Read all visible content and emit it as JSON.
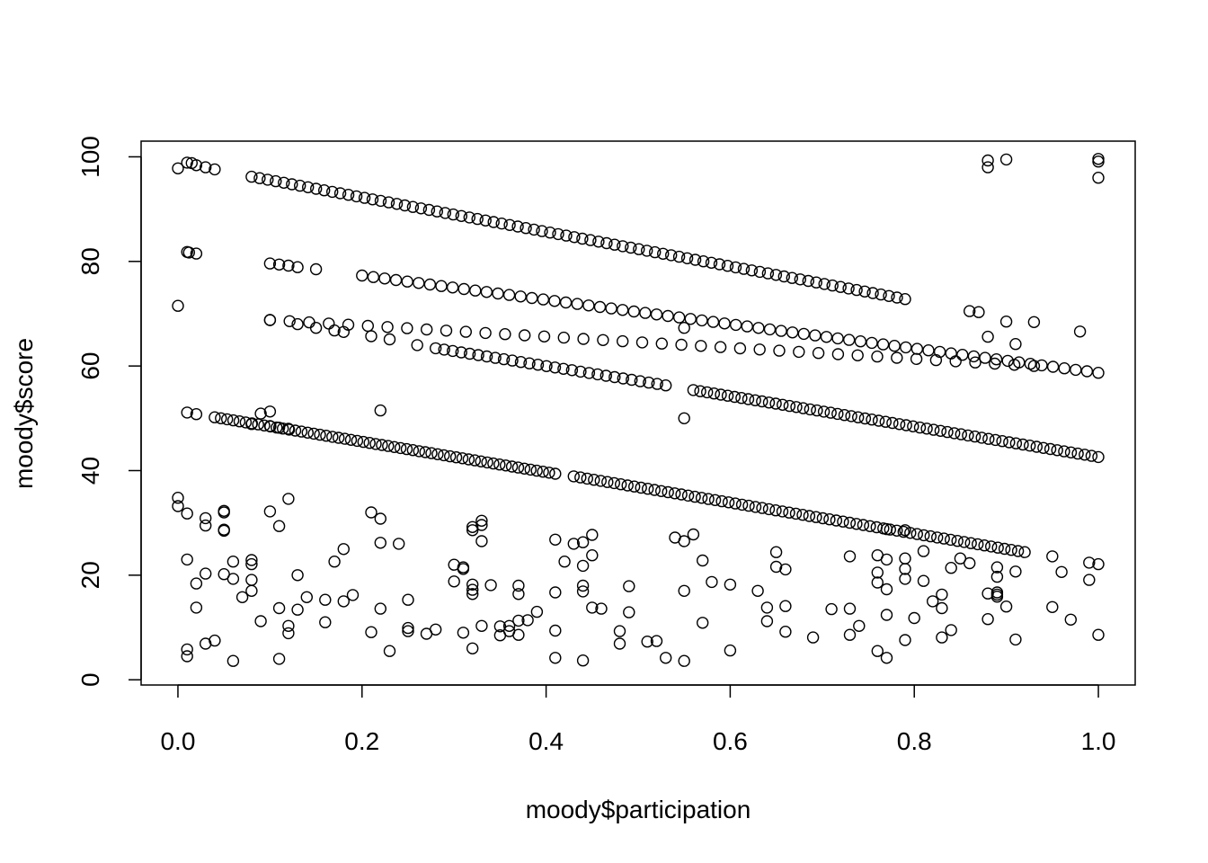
{
  "chart_data": {
    "type": "scatter",
    "title": "",
    "xlabel": "moody$participation",
    "ylabel": "moody$score",
    "xlim": [
      -0.04,
      1.04
    ],
    "ylim": [
      -1,
      103
    ],
    "grid": false,
    "x_ticks": [
      0.0,
      0.2,
      0.4,
      0.6,
      0.8,
      1.0
    ],
    "x_tick_labels": [
      "0.0",
      "0.2",
      "0.4",
      "0.6",
      "0.8",
      "1.0"
    ],
    "y_ticks": [
      0,
      20,
      40,
      60,
      80,
      100
    ],
    "y_tick_labels": [
      "0",
      "20",
      "40",
      "60",
      "80",
      "100"
    ],
    "bands": [
      {
        "x0": 0.08,
        "y0": 96.2,
        "x1": 0.79,
        "y1": 72.8,
        "n": 82
      },
      {
        "x0": 0.2,
        "y0": 77.3,
        "x1": 1.0,
        "y1": 58.7,
        "n": 66
      },
      {
        "x0": 0.1,
        "y0": 68.8,
        "x1": 0.93,
        "y1": 60.0,
        "n": 40
      },
      {
        "x0": 0.28,
        "y0": 63.4,
        "x1": 0.53,
        "y1": 56.3,
        "n": 28
      },
      {
        "x0": 0.56,
        "y0": 55.4,
        "x1": 1.0,
        "y1": 42.6,
        "n": 60
      },
      {
        "x0": 0.04,
        "y0": 50.2,
        "x1": 0.41,
        "y1": 39.4,
        "n": 56
      },
      {
        "x0": 0.43,
        "y0": 38.9,
        "x1": 0.92,
        "y1": 24.4,
        "n": 68
      }
    ],
    "points": [
      [
        0.0,
        97.8
      ],
      [
        0.01,
        98.9
      ],
      [
        0.015,
        98.8
      ],
      [
        0.02,
        98.4
      ],
      [
        0.03,
        98.0
      ],
      [
        0.04,
        97.6
      ],
      [
        0.01,
        81.8
      ],
      [
        0.012,
        81.7
      ],
      [
        0.02,
        81.5
      ],
      [
        0.1,
        79.6
      ],
      [
        0.11,
        79.4
      ],
      [
        0.12,
        79.2
      ],
      [
        0.13,
        78.9
      ],
      [
        0.15,
        78.5
      ],
      [
        0.0,
        71.5
      ],
      [
        0.1,
        68.8
      ],
      [
        0.13,
        68.0
      ],
      [
        0.15,
        67.3
      ],
      [
        0.17,
        66.8
      ],
      [
        0.18,
        66.5
      ],
      [
        0.21,
        65.7
      ],
      [
        0.23,
        65.1
      ],
      [
        0.26,
        64.0
      ],
      [
        0.01,
        51.1
      ],
      [
        0.02,
        50.8
      ],
      [
        0.09,
        50.9
      ],
      [
        0.1,
        51.3
      ],
      [
        0.22,
        51.5
      ],
      [
        0.08,
        48.9
      ],
      [
        0.1,
        48.5
      ],
      [
        0.11,
        48.2
      ],
      [
        0.12,
        48.0
      ],
      [
        0.55,
        67.3
      ],
      [
        0.55,
        50.0
      ],
      [
        0.86,
        70.5
      ],
      [
        0.87,
        70.3
      ],
      [
        0.9,
        68.5
      ],
      [
        0.93,
        68.4
      ],
      [
        0.88,
        65.6
      ],
      [
        0.91,
        64.2
      ],
      [
        0.98,
        66.6
      ],
      [
        0.88,
        99.3
      ],
      [
        0.88,
        98.0
      ],
      [
        0.9,
        99.5
      ],
      [
        1.0,
        99.6
      ],
      [
        1.0,
        99.1
      ],
      [
        1.0,
        96.0
      ],
      [
        0.0,
        34.8
      ],
      [
        0.0,
        33.2
      ],
      [
        0.01,
        31.8
      ],
      [
        0.03,
        30.9
      ],
      [
        0.03,
        29.5
      ],
      [
        0.05,
        32.3
      ],
      [
        0.05,
        32.0
      ],
      [
        0.05,
        28.7
      ],
      [
        0.05,
        28.5
      ],
      [
        0.1,
        32.2
      ],
      [
        0.11,
        29.4
      ],
      [
        0.12,
        34.6
      ],
      [
        0.21,
        32.0
      ],
      [
        0.22,
        30.8
      ],
      [
        0.22,
        26.2
      ],
      [
        0.24,
        26.0
      ],
      [
        0.32,
        28.6
      ],
      [
        0.32,
        29.2
      ],
      [
        0.33,
        30.4
      ],
      [
        0.33,
        29.6
      ],
      [
        0.33,
        26.5
      ],
      [
        0.41,
        26.8
      ],
      [
        0.43,
        26.0
      ],
      [
        0.44,
        26.3
      ],
      [
        0.45,
        27.7
      ],
      [
        0.54,
        27.2
      ],
      [
        0.55,
        26.5
      ],
      [
        0.56,
        27.8
      ],
      [
        0.77,
        28.8
      ],
      [
        0.79,
        28.6
      ],
      [
        0.01,
        23.0
      ],
      [
        0.02,
        18.4
      ],
      [
        0.02,
        13.8
      ],
      [
        0.03,
        20.3
      ],
      [
        0.05,
        20.2
      ],
      [
        0.06,
        22.6
      ],
      [
        0.06,
        19.3
      ],
      [
        0.07,
        15.8
      ],
      [
        0.08,
        22.9
      ],
      [
        0.08,
        22.1
      ],
      [
        0.08,
        19.1
      ],
      [
        0.08,
        17.0
      ],
      [
        0.09,
        11.2
      ],
      [
        0.11,
        13.7
      ],
      [
        0.12,
        10.3
      ],
      [
        0.12,
        8.9
      ],
      [
        0.13,
        13.4
      ],
      [
        0.13,
        20.0
      ],
      [
        0.14,
        15.8
      ],
      [
        0.16,
        15.3
      ],
      [
        0.16,
        11.0
      ],
      [
        0.17,
        22.6
      ],
      [
        0.18,
        25.0
      ],
      [
        0.18,
        15.0
      ],
      [
        0.19,
        16.2
      ],
      [
        0.21,
        9.1
      ],
      [
        0.22,
        13.6
      ],
      [
        0.25,
        15.3
      ],
      [
        0.25,
        9.9
      ],
      [
        0.25,
        9.3
      ],
      [
        0.27,
        8.8
      ],
      [
        0.28,
        9.6
      ],
      [
        0.3,
        22.0
      ],
      [
        0.31,
        21.5
      ],
      [
        0.31,
        21.2
      ],
      [
        0.3,
        18.8
      ],
      [
        0.32,
        18.2
      ],
      [
        0.32,
        17.2
      ],
      [
        0.32,
        16.4
      ],
      [
        0.34,
        18.1
      ],
      [
        0.37,
        18.0
      ],
      [
        0.37,
        16.4
      ],
      [
        0.36,
        10.3
      ],
      [
        0.37,
        11.3
      ],
      [
        0.38,
        11.4
      ],
      [
        0.39,
        13.0
      ],
      [
        0.31,
        9.0
      ],
      [
        0.33,
        10.3
      ],
      [
        0.35,
        10.2
      ],
      [
        0.35,
        8.5
      ],
      [
        0.36,
        9.3
      ],
      [
        0.37,
        8.6
      ],
      [
        0.41,
        16.7
      ],
      [
        0.41,
        9.4
      ],
      [
        0.42,
        22.6
      ],
      [
        0.44,
        21.8
      ],
      [
        0.44,
        18.0
      ],
      [
        0.44,
        16.9
      ],
      [
        0.45,
        23.8
      ],
      [
        0.45,
        13.8
      ],
      [
        0.46,
        13.6
      ],
      [
        0.48,
        9.3
      ],
      [
        0.48,
        6.9
      ],
      [
        0.49,
        17.9
      ],
      [
        0.49,
        12.9
      ],
      [
        0.51,
        7.3
      ],
      [
        0.52,
        7.4
      ],
      [
        0.55,
        17.0
      ],
      [
        0.57,
        22.8
      ],
      [
        0.58,
        18.7
      ],
      [
        0.57,
        10.9
      ],
      [
        0.6,
        18.2
      ],
      [
        0.63,
        17.0
      ],
      [
        0.64,
        13.8
      ],
      [
        0.64,
        11.2
      ],
      [
        0.65,
        24.4
      ],
      [
        0.65,
        21.6
      ],
      [
        0.66,
        21.1
      ],
      [
        0.66,
        14.1
      ],
      [
        0.66,
        9.2
      ],
      [
        0.69,
        8.1
      ],
      [
        0.71,
        13.5
      ],
      [
        0.73,
        23.6
      ],
      [
        0.73,
        13.6
      ],
      [
        0.73,
        8.6
      ],
      [
        0.74,
        10.3
      ],
      [
        0.76,
        23.8
      ],
      [
        0.76,
        20.5
      ],
      [
        0.76,
        18.6
      ],
      [
        0.77,
        23.0
      ],
      [
        0.77,
        17.3
      ],
      [
        0.77,
        12.4
      ],
      [
        0.79,
        23.2
      ],
      [
        0.79,
        21.2
      ],
      [
        0.79,
        19.3
      ],
      [
        0.79,
        7.6
      ],
      [
        0.8,
        11.8
      ],
      [
        0.81,
        24.6
      ],
      [
        0.81,
        18.9
      ],
      [
        0.82,
        15.0
      ],
      [
        0.83,
        16.3
      ],
      [
        0.83,
        13.7
      ],
      [
        0.83,
        8.1
      ],
      [
        0.84,
        21.4
      ],
      [
        0.84,
        9.5
      ],
      [
        0.85,
        23.2
      ],
      [
        0.86,
        22.3
      ],
      [
        0.88,
        16.5
      ],
      [
        0.88,
        11.6
      ],
      [
        0.89,
        21.5
      ],
      [
        0.89,
        19.7
      ],
      [
        0.89,
        16.7
      ],
      [
        0.89,
        16.3
      ],
      [
        0.89,
        15.9
      ],
      [
        0.9,
        14.0
      ],
      [
        0.91,
        20.7
      ],
      [
        0.91,
        7.7
      ],
      [
        0.95,
        23.6
      ],
      [
        0.95,
        13.9
      ],
      [
        0.96,
        20.6
      ],
      [
        0.97,
        11.5
      ],
      [
        0.99,
        22.4
      ],
      [
        0.99,
        19.1
      ],
      [
        1.0,
        22.1
      ],
      [
        1.0,
        8.6
      ],
      [
        0.01,
        5.8
      ],
      [
        0.01,
        4.5
      ],
      [
        0.03,
        6.9
      ],
      [
        0.04,
        7.5
      ],
      [
        0.06,
        3.6
      ],
      [
        0.11,
        4.0
      ],
      [
        0.23,
        5.5
      ],
      [
        0.32,
        6.0
      ],
      [
        0.41,
        4.2
      ],
      [
        0.44,
        3.7
      ],
      [
        0.53,
        4.2
      ],
      [
        0.55,
        3.6
      ],
      [
        0.6,
        5.6
      ],
      [
        0.76,
        5.5
      ],
      [
        0.77,
        4.2
      ]
    ]
  }
}
